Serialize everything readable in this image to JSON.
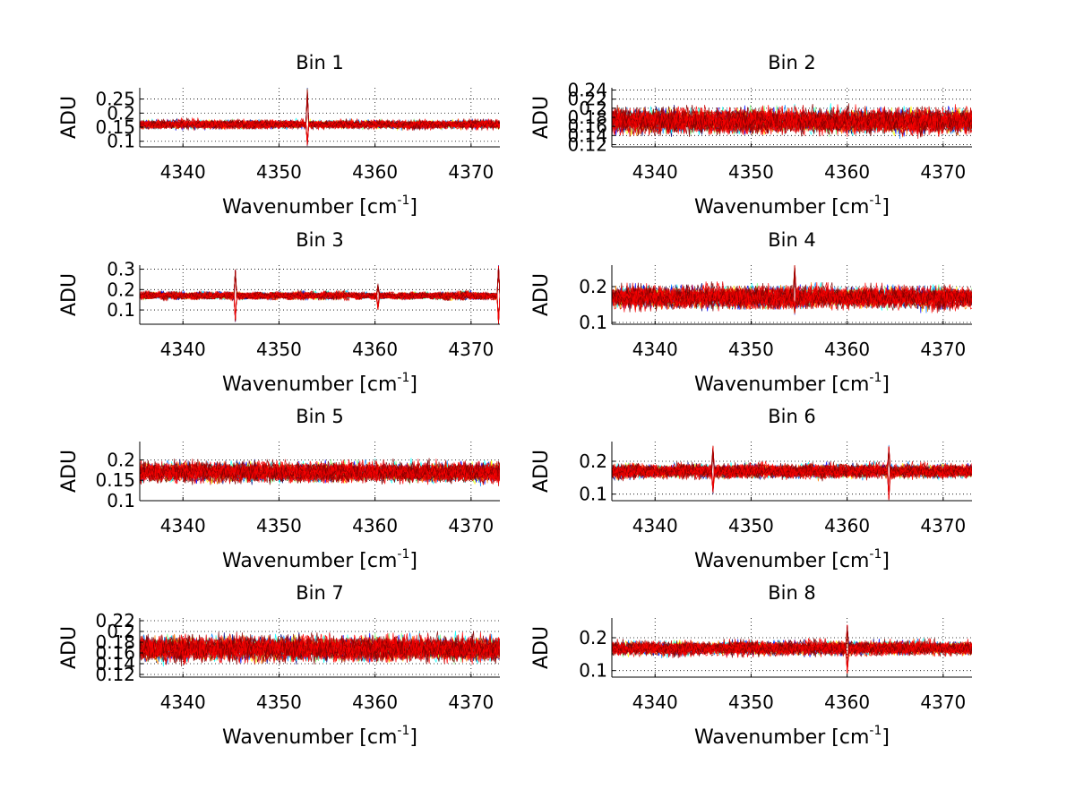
{
  "chart_data": [
    {
      "type": "line",
      "title": "Bin 1",
      "xlabel": "Wavenumber [cm",
      "xlabel_sup": "-1",
      "xlabel_end": "]",
      "ylabel": "ADU",
      "xlim": [
        4335.5,
        4373
      ],
      "ylim": [
        0.08,
        0.29
      ],
      "xticks": [
        4340,
        4350,
        4360,
        4370
      ],
      "yticks": [
        0.1,
        0.15,
        0.2,
        0.25
      ],
      "ytick_labels": [
        "0.1",
        "0.15",
        "0.2",
        "0.25"
      ],
      "grid": "dotted",
      "series_count": 40,
      "baseline": 0.16,
      "noise_amplitude": 0.025,
      "spikes": [
        {
          "x": 4353,
          "low": 0.08,
          "high": 0.29
        }
      ]
    },
    {
      "type": "line",
      "title": "Bin 2",
      "xlabel": "Wavenumber [cm",
      "xlabel_sup": "-1",
      "xlabel_end": "]",
      "ylabel": "ADU",
      "xlim": [
        4335.5,
        4373
      ],
      "ylim": [
        0.115,
        0.245
      ],
      "xticks": [
        4340,
        4350,
        4360,
        4370
      ],
      "yticks": [
        0.12,
        0.14,
        0.16,
        0.18,
        0.2,
        0.22,
        0.24
      ],
      "ytick_labels": [
        "0.12",
        "0.14",
        "0.16",
        "0.18",
        "0.2",
        "0.22",
        "0.24"
      ],
      "grid": "dotted",
      "series_count": 40,
      "baseline": 0.172,
      "noise_amplitude": 0.045,
      "spikes": []
    },
    {
      "type": "line",
      "title": "Bin 3",
      "xlabel": "Wavenumber [cm",
      "xlabel_sup": "-1",
      "xlabel_end": "]",
      "ylabel": "ADU",
      "xlim": [
        4335.5,
        4373
      ],
      "ylim": [
        0.03,
        0.32
      ],
      "xticks": [
        4340,
        4350,
        4360,
        4370
      ],
      "yticks": [
        0.1,
        0.2,
        0.3
      ],
      "ytick_labels": [
        "0.1",
        "0.2",
        "0.3"
      ],
      "grid": "dotted",
      "series_count": 40,
      "baseline": 0.17,
      "noise_amplitude": 0.03,
      "spikes": [
        {
          "x": 4345.5,
          "low": 0.04,
          "high": 0.3
        },
        {
          "x": 4360.3,
          "low": 0.1,
          "high": 0.23
        },
        {
          "x": 4372.8,
          "low": 0.03,
          "high": 0.32
        }
      ]
    },
    {
      "type": "line",
      "title": "Bin 4",
      "xlabel": "Wavenumber [cm",
      "xlabel_sup": "-1",
      "xlabel_end": "]",
      "ylabel": "ADU",
      "xlim": [
        4335.5,
        4373
      ],
      "ylim": [
        0.095,
        0.26
      ],
      "xticks": [
        4340,
        4350,
        4360,
        4370
      ],
      "yticks": [
        0.1,
        0.2
      ],
      "ytick_labels": [
        "0.1",
        "0.2"
      ],
      "grid": "dotted",
      "series_count": 40,
      "baseline": 0.17,
      "noise_amplitude": 0.05,
      "spikes": [
        {
          "x": 4354.5,
          "low": 0.12,
          "high": 0.26
        }
      ]
    },
    {
      "type": "line",
      "title": "Bin 5",
      "xlabel": "Wavenumber [cm",
      "xlabel_sup": "-1",
      "xlabel_end": "]",
      "ylabel": "ADU",
      "xlim": [
        4335.5,
        4373
      ],
      "ylim": [
        0.1,
        0.245
      ],
      "xticks": [
        4340,
        4350,
        4360,
        4370
      ],
      "yticks": [
        0.1,
        0.15,
        0.2
      ],
      "ytick_labels": [
        "0.1",
        "0.15",
        "0.2"
      ],
      "grid": "dotted",
      "series_count": 40,
      "baseline": 0.17,
      "noise_amplitude": 0.04,
      "spikes": []
    },
    {
      "type": "line",
      "title": "Bin 6",
      "xlabel": "Wavenumber [cm",
      "xlabel_sup": "-1",
      "xlabel_end": "]",
      "ylabel": "ADU",
      "xlim": [
        4335.5,
        4373
      ],
      "ylim": [
        0.08,
        0.26
      ],
      "xticks": [
        4340,
        4350,
        4360,
        4370
      ],
      "yticks": [
        0.1,
        0.2
      ],
      "ytick_labels": [
        "0.1",
        "0.2"
      ],
      "grid": "dotted",
      "series_count": 40,
      "baseline": 0.17,
      "noise_amplitude": 0.035,
      "spikes": [
        {
          "x": 4346,
          "low": 0.1,
          "high": 0.25
        },
        {
          "x": 4364.3,
          "low": 0.08,
          "high": 0.25
        }
      ]
    },
    {
      "type": "line",
      "title": "Bin 7",
      "xlabel": "Wavenumber [cm",
      "xlabel_sup": "-1",
      "xlabel_end": "]",
      "ylabel": "ADU",
      "xlim": [
        4335.5,
        4373
      ],
      "ylim": [
        0.115,
        0.225
      ],
      "xticks": [
        4340,
        4350,
        4360,
        4370
      ],
      "yticks": [
        0.12,
        0.14,
        0.16,
        0.18,
        0.2,
        0.22
      ],
      "ytick_labels": [
        "0.12",
        "0.14",
        "0.16",
        "0.18",
        "0.2",
        "0.22"
      ],
      "grid": "dotted",
      "series_count": 40,
      "baseline": 0.168,
      "noise_amplitude": 0.038,
      "spikes": []
    },
    {
      "type": "line",
      "title": "Bin 8",
      "xlabel": "Wavenumber [cm",
      "xlabel_sup": "-1",
      "xlabel_end": "]",
      "ylabel": "ADU",
      "xlim": [
        4335.5,
        4373
      ],
      "ylim": [
        0.08,
        0.26
      ],
      "xticks": [
        4340,
        4350,
        4360,
        4370
      ],
      "yticks": [
        0.1,
        0.2
      ],
      "ytick_labels": [
        "0.1",
        "0.2"
      ],
      "grid": "dotted",
      "series_count": 40,
      "baseline": 0.168,
      "noise_amplitude": 0.035,
      "spikes": [
        {
          "x": 4360,
          "low": 0.09,
          "high": 0.24
        }
      ]
    }
  ],
  "colors": {
    "series_palette": [
      "#00007f",
      "#0000ff",
      "#007fff",
      "#00ffff",
      "#7fff7f",
      "#ffff00",
      "#ff7f00",
      "#ff0000",
      "#7f0000"
    ],
    "dominant": "#d40000",
    "axis": "#000000",
    "grid": "#000000",
    "background": "#ffffff"
  }
}
